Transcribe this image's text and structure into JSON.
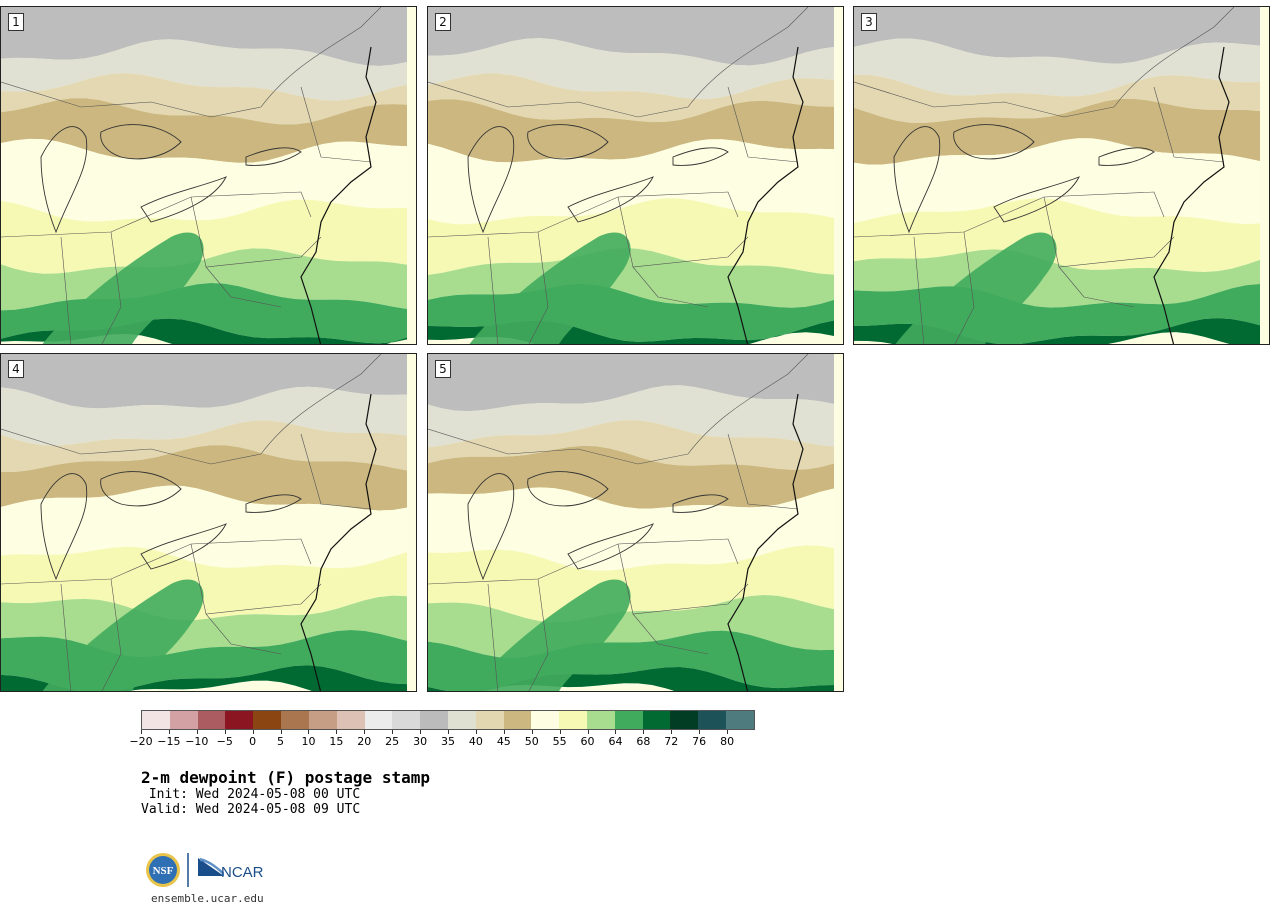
{
  "panels": [
    {
      "label": "1"
    },
    {
      "label": "2"
    },
    {
      "label": "3"
    },
    {
      "label": "4"
    },
    {
      "label": "5"
    }
  ],
  "colorbar": {
    "ticks": [
      "−20",
      "−15",
      "−10",
      "−5",
      "0",
      "5",
      "10",
      "15",
      "20",
      "25",
      "30",
      "35",
      "40",
      "45",
      "50",
      "55",
      "60",
      "64",
      "68",
      "72",
      "76",
      "80"
    ],
    "colors": [
      "#f2e4e4",
      "#d3a0a4",
      "#aa5c60",
      "#8b1622",
      "#8a4512",
      "#a9764f",
      "#c69e86",
      "#dcc1b4",
      "#ececec",
      "#d9d9d9",
      "#bbbbbb",
      "#dfe0d2",
      "#e2d7b0",
      "#cbb77f",
      "#fefee2",
      "#f6f9b4",
      "#a8dd90",
      "#41ab5d",
      "#006a32",
      "#003d24",
      "#1d5358",
      "#4d7b7e"
    ]
  },
  "title": "2-m dewpoint (F) postage stamp",
  "init": " Init: Wed 2024-05-08 00 UTC",
  "valid": "Valid: Wed 2024-05-08 09 UTC",
  "logos": {
    "nsf": "NSF",
    "ncar": "NCAR"
  },
  "footer": "ensemble.ucar.edu"
}
